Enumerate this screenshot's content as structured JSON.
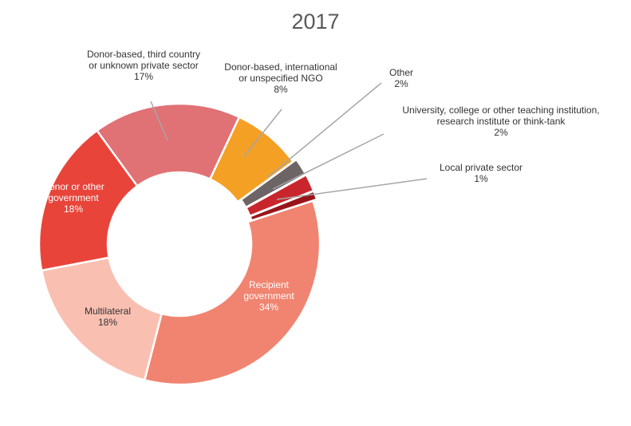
{
  "chart_data": {
    "type": "pie",
    "title": "2017",
    "slices": [
      {
        "name": "Recipient government",
        "label_lines": [
          "Recipient",
          "government"
        ],
        "value_label": "34%",
        "value": 34,
        "color": "#f08470"
      },
      {
        "name": "Multilateral",
        "label_lines": [
          "Multilateral"
        ],
        "value_label": "18%",
        "value": 18,
        "color": "#f9c0b2"
      },
      {
        "name": "Donor or other government",
        "label_lines": [
          "Donor or other",
          "government"
        ],
        "value_label": "18%",
        "value": 18,
        "color": "#e8443a"
      },
      {
        "name": "Donor-based, third country or unknown private sector",
        "label_lines": [
          "Donor-based, third country",
          "or unknown private sector"
        ],
        "value_label": "17%",
        "value": 17,
        "color": "#e07175"
      },
      {
        "name": "Donor-based, international or unspecified NGO",
        "label_lines": [
          "Donor-based, international",
          "or unspecified NGO"
        ],
        "value_label": "8%",
        "value": 8,
        "color": "#f4a024"
      },
      {
        "name": "Other",
        "label_lines": [
          "Other"
        ],
        "value_label": "2%",
        "value": 2,
        "color": "#6d6466"
      },
      {
        "name": "University, college or other teaching institution, research institute or think-tank",
        "label_lines": [
          "University, college or other teaching institution,",
          "research institute or think-tank"
        ],
        "value_label": "2%",
        "value": 2,
        "color": "#c8262c"
      },
      {
        "name": "Local private sector",
        "label_lines": [
          "Local private sector"
        ],
        "value_label": "1%",
        "value": 1,
        "color": "#98161b"
      }
    ]
  }
}
